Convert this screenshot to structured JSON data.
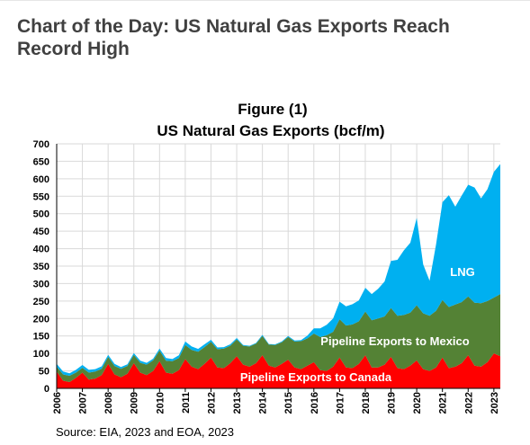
{
  "article": {
    "title": "Chart of the Day: US Natural Gas Exports Reach Record High"
  },
  "source_note": "Source: EIA, 2023 and EOA, 2023",
  "colors": {
    "canada": "#ff0000",
    "mexico": "#548235",
    "lng": "#00b0f0",
    "grid": "#d9d9d9",
    "title": "#404040"
  },
  "chart_data": {
    "type": "area",
    "stacked": true,
    "figure_label": "Figure (1)",
    "title": "US Natural Gas Exports (bcf/m)",
    "xlabel": "",
    "ylabel": "",
    "ylim": [
      0,
      700
    ],
    "yticks": [
      0,
      50,
      100,
      150,
      200,
      250,
      300,
      350,
      400,
      450,
      500,
      550,
      600,
      650,
      700
    ],
    "xlim": [
      2006,
      2023.25
    ],
    "xticks": [
      2006,
      2007,
      2008,
      2009,
      2010,
      2011,
      2012,
      2013,
      2014,
      2015,
      2016,
      2017,
      2018,
      2019,
      2020,
      2021,
      2022,
      2023
    ],
    "grid": true,
    "legend": "none",
    "series_labels": [
      {
        "text": "LNG",
        "series": "LNG"
      },
      {
        "text": "Pipeline Exports to Mexico",
        "series": "Pipeline Exports to Mexico"
      },
      {
        "text": "Pipeline Exports to Canada",
        "series": "Pipeline Exports to Canada"
      }
    ],
    "x": [
      2006.0,
      2006.25,
      2006.5,
      2006.75,
      2007.0,
      2007.25,
      2007.5,
      2007.75,
      2008.0,
      2008.25,
      2008.5,
      2008.75,
      2009.0,
      2009.25,
      2009.5,
      2009.75,
      2010.0,
      2010.25,
      2010.5,
      2010.75,
      2011.0,
      2011.25,
      2011.5,
      2011.75,
      2012.0,
      2012.25,
      2012.5,
      2012.75,
      2013.0,
      2013.25,
      2013.5,
      2013.75,
      2014.0,
      2014.25,
      2014.5,
      2014.75,
      2015.0,
      2015.25,
      2015.5,
      2015.75,
      2016.0,
      2016.25,
      2016.5,
      2016.75,
      2017.0,
      2017.25,
      2017.5,
      2017.75,
      2018.0,
      2018.25,
      2018.5,
      2018.75,
      2019.0,
      2019.25,
      2019.5,
      2019.75,
      2020.0,
      2020.25,
      2020.5,
      2020.75,
      2021.0,
      2021.25,
      2021.5,
      2021.75,
      2022.0,
      2022.25,
      2022.5,
      2022.75,
      2023.0,
      2023.25
    ],
    "series": [
      {
        "name": "Pipeline Exports to Canada",
        "values": [
          48,
          22,
          18,
          30,
          45,
          25,
          28,
          38,
          70,
          40,
          32,
          42,
          72,
          45,
          38,
          50,
          78,
          45,
          42,
          52,
          84,
          62,
          55,
          70,
          88,
          60,
          58,
          72,
          92,
          68,
          62,
          72,
          95,
          65,
          60,
          70,
          82,
          60,
          55,
          65,
          75,
          52,
          50,
          62,
          88,
          60,
          58,
          70,
          95,
          60,
          60,
          68,
          90,
          58,
          55,
          65,
          80,
          55,
          50,
          60,
          88,
          58,
          62,
          72,
          95,
          65,
          62,
          75,
          100,
          92
        ]
      },
      {
        "name": "Pipeline Exports to Mexico",
        "values": [
          14,
          18,
          18,
          15,
          14,
          20,
          20,
          18,
          20,
          24,
          24,
          22,
          24,
          28,
          30,
          30,
          30,
          34,
          36,
          35,
          40,
          48,
          50,
          48,
          45,
          52,
          56,
          50,
          48,
          54,
          58,
          56,
          55,
          60,
          64,
          62,
          65,
          74,
          80,
          78,
          82,
          95,
          102,
          100,
          110,
          120,
          125,
          122,
          125,
          135,
          140,
          138,
          140,
          150,
          155,
          152,
          158,
          160,
          158,
          162,
          165,
          175,
          178,
          175,
          168,
          180,
          182,
          175,
          160,
          178
        ]
      },
      {
        "name": "LNG",
        "values": [
          8,
          8,
          7,
          8,
          8,
          8,
          7,
          7,
          6,
          6,
          5,
          5,
          5,
          6,
          5,
          5,
          6,
          8,
          6,
          8,
          10,
          10,
          8,
          8,
          6,
          5,
          4,
          4,
          4,
          2,
          2,
          2,
          3,
          2,
          2,
          2,
          3,
          3,
          3,
          8,
          15,
          25,
          30,
          38,
          50,
          55,
          58,
          60,
          68,
          75,
          85,
          100,
          135,
          160,
          185,
          200,
          250,
          140,
          100,
          190,
          280,
          320,
          280,
          305,
          320,
          330,
          300,
          320,
          360,
          372
        ]
      }
    ]
  }
}
